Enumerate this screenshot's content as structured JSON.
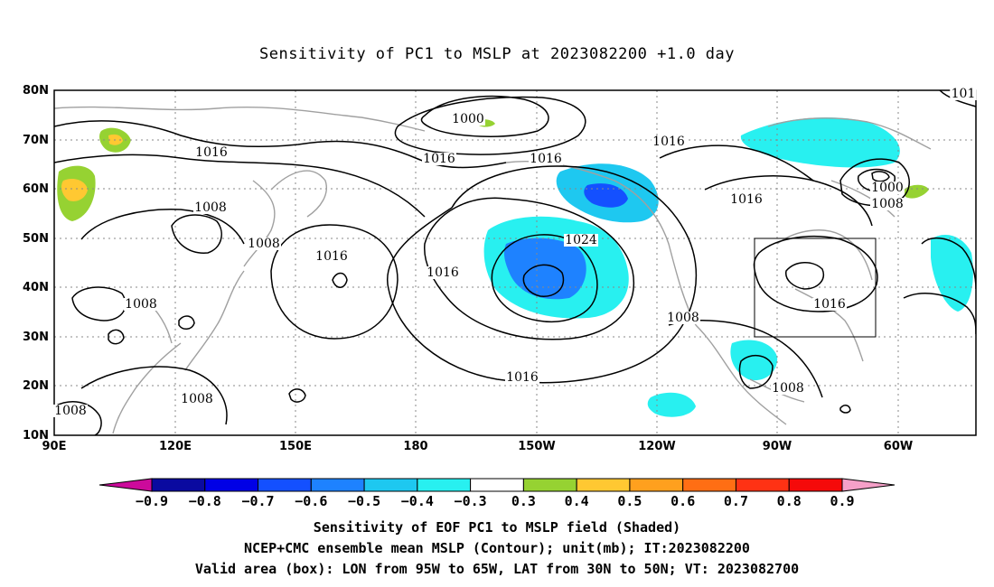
{
  "title": "Sensitivity of PC1 to MSLP at 2023082200 +1.0 day",
  "lat_ticks": [
    "80N",
    "70N",
    "60N",
    "50N",
    "40N",
    "30N",
    "20N",
    "10N"
  ],
  "lon_ticks": [
    "90E",
    "120E",
    "150E",
    "180",
    "150W",
    "120W",
    "90W",
    "60W"
  ],
  "contour_labels": [
    "1000",
    "1016",
    "1016",
    "1016",
    "1016",
    "1008",
    "1008",
    "1016",
    "1016",
    "1024",
    "1008",
    "1008",
    "1016",
    "1008",
    "1008",
    "1016",
    "1016",
    "1008",
    "1008",
    "1000",
    "1008",
    "101"
  ],
  "colorbar": {
    "labels": [
      "-0.9",
      "-0.8",
      "-0.7",
      "-0.6",
      "-0.5",
      "-0.4",
      "-0.3",
      "0.3",
      "0.4",
      "0.5",
      "0.6",
      "0.7",
      "0.8",
      "0.9"
    ],
    "colors": [
      "#cc0a9b",
      "#0a0aa0",
      "#0000e6",
      "#1450ff",
      "#1e82ff",
      "#1ec8f0",
      "#28f0f0",
      "#ffffff",
      "#96d232",
      "#ffc832",
      "#ffa01e",
      "#ff6e14",
      "#ff3214",
      "#f50a0a",
      "#f5a0c8"
    ]
  },
  "captions": [
    "Sensitivity of EOF PC1 to MSLP field (Shaded)",
    "NCEP+CMC ensemble mean MSLP (Contour); unit(mb); IT:2023082200",
    "Valid area (box): LON from 95W to 65W, LAT from 30N to 50N; VT: 2023082700"
  ],
  "valid_box": {
    "lon_west": "95W",
    "lon_east": "65W",
    "lat_south": "30N",
    "lat_north": "50N"
  }
}
